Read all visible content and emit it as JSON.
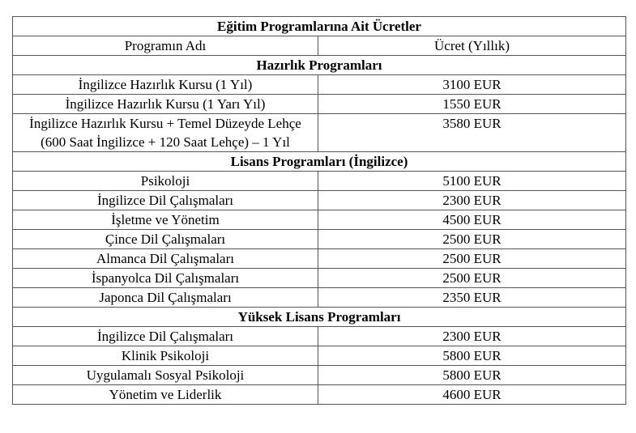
{
  "table": {
    "title": "Eğitim Programlarına Ait Ücretler",
    "header": [
      "Programın Adı",
      "Ücret (Yıllık)"
    ],
    "sections": [
      {
        "title": "Hazırlık Programları",
        "rows": [
          [
            "İngilizce Hazırlık Kursu (1 Yıl)",
            "3100 EUR"
          ],
          [
            "İngilizce Hazırlık Kursu (1 Yarı Yıl)",
            "1550 EUR"
          ],
          [
            "İngilizce Hazırlık Kursu + Temel Düzeyde Lehçe (600 Saat İngilizce + 120 Saat Lehçe) – 1 Yıl",
            "3580 EUR"
          ]
        ]
      },
      {
        "title": "Lisans Programları (İngilizce)",
        "rows": [
          [
            "Psikoloji",
            "5100 EUR"
          ],
          [
            "İngilizce Dil Çalışmaları",
            "2300 EUR"
          ],
          [
            "İşletme ve Yönetim",
            "4500 EUR"
          ],
          [
            "Çince Dil Çalışmaları",
            "2500 EUR"
          ],
          [
            "Almanca Dil Çalışmaları",
            "2500 EUR"
          ],
          [
            "İspanyolca Dil Çalışmaları",
            "2500 EUR"
          ],
          [
            "Japonca Dil Çalışmaları",
            "2350 EUR"
          ]
        ]
      },
      {
        "title": "Yüksek Lisans Programları",
        "rows": [
          [
            "İngilizce Dil Çalışmaları",
            "2300 EUR"
          ],
          [
            "Klinik Psikoloji",
            "5800 EUR"
          ],
          [
            "Uygulamalı Sosyal Psikoloji",
            "5800 EUR"
          ],
          [
            "Yönetim ve Liderlik",
            "4600 EUR"
          ]
        ]
      }
    ]
  }
}
